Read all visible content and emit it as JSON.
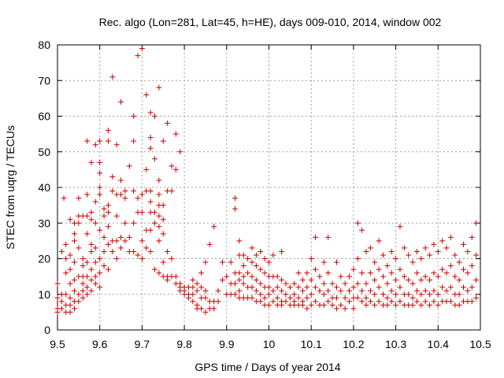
{
  "chart_data": {
    "type": "scatter",
    "title": "Rec. algo (Lon=281, Lat=45, h=HE), days 009-010, 2014, window 002",
    "xlabel": "GPS time / Days of year 2014",
    "ylabel": "STEC from uqrg / TECUs",
    "xlim": [
      9.5,
      10.5
    ],
    "ylim": [
      0,
      80
    ],
    "xticks": [
      "9.5",
      "9.6",
      "9.7",
      "9.8",
      "9.9",
      "10",
      "10.1",
      "10.2",
      "10.3",
      "10.4",
      "10.5"
    ],
    "yticks": [
      "0",
      "10",
      "20",
      "30",
      "40",
      "50",
      "60",
      "70",
      "80"
    ],
    "grid": true,
    "marker": "+",
    "marker_color": "#cc0000",
    "points": [
      [
        9.5,
        13
      ],
      [
        9.5,
        9
      ],
      [
        9.5,
        6
      ],
      [
        9.5,
        5
      ],
      [
        9.51,
        22
      ],
      [
        9.51,
        10
      ],
      [
        9.51,
        8
      ],
      [
        9.51,
        6
      ],
      [
        9.515,
        37
      ],
      [
        9.52,
        20
      ],
      [
        9.52,
        24
      ],
      [
        9.52,
        16
      ],
      [
        9.52,
        10
      ],
      [
        9.52,
        7
      ],
      [
        9.52,
        5
      ],
      [
        9.53,
        31
      ],
      [
        9.53,
        21
      ],
      [
        9.53,
        17
      ],
      [
        9.53,
        13
      ],
      [
        9.53,
        9
      ],
      [
        9.53,
        7
      ],
      [
        9.53,
        5
      ],
      [
        9.54,
        30
      ],
      [
        9.54,
        27
      ],
      [
        9.54,
        25
      ],
      [
        9.54,
        19
      ],
      [
        9.54,
        14
      ],
      [
        9.54,
        11
      ],
      [
        9.54,
        8
      ],
      [
        9.54,
        6
      ],
      [
        9.55,
        37
      ],
      [
        9.55,
        32
      ],
      [
        9.55,
        30
      ],
      [
        9.55,
        23
      ],
      [
        9.55,
        15
      ],
      [
        9.55,
        10
      ],
      [
        9.55,
        8
      ],
      [
        9.56,
        32
      ],
      [
        9.56,
        20
      ],
      [
        9.56,
        18
      ],
      [
        9.56,
        15
      ],
      [
        9.56,
        13
      ],
      [
        9.56,
        11
      ],
      [
        9.56,
        9
      ],
      [
        9.57,
        53
      ],
      [
        9.57,
        38
      ],
      [
        9.57,
        32
      ],
      [
        9.57,
        27
      ],
      [
        9.57,
        19
      ],
      [
        9.57,
        15
      ],
      [
        9.57,
        12
      ],
      [
        9.57,
        10
      ],
      [
        9.58,
        47
      ],
      [
        9.58,
        33
      ],
      [
        9.58,
        31
      ],
      [
        9.58,
        24
      ],
      [
        9.58,
        22
      ],
      [
        9.58,
        17
      ],
      [
        9.58,
        14
      ],
      [
        9.58,
        11
      ],
      [
        9.59,
        52
      ],
      [
        9.59,
        36
      ],
      [
        9.59,
        30
      ],
      [
        9.59,
        23
      ],
      [
        9.59,
        19
      ],
      [
        9.59,
        15
      ],
      [
        9.59,
        13
      ],
      [
        9.6,
        53
      ],
      [
        9.6,
        47
      ],
      [
        9.6,
        44
      ],
      [
        9.6,
        40
      ],
      [
        9.6,
        38
      ],
      [
        9.6,
        28
      ],
      [
        9.6,
        20
      ],
      [
        9.6,
        16
      ],
      [
        9.6,
        12
      ],
      [
        9.61,
        34
      ],
      [
        9.61,
        32
      ],
      [
        9.61,
        26
      ],
      [
        9.61,
        22
      ],
      [
        9.61,
        18
      ],
      [
        9.62,
        56
      ],
      [
        9.62,
        53
      ],
      [
        9.62,
        35
      ],
      [
        9.62,
        33
      ],
      [
        9.62,
        29
      ],
      [
        9.62,
        24
      ],
      [
        9.62,
        17
      ],
      [
        9.63,
        71
      ],
      [
        9.63,
        43
      ],
      [
        9.63,
        39
      ],
      [
        9.63,
        25
      ],
      [
        9.63,
        22
      ],
      [
        9.64,
        52
      ],
      [
        9.64,
        38
      ],
      [
        9.64,
        32
      ],
      [
        9.64,
        25
      ],
      [
        9.64,
        20
      ],
      [
        9.65,
        64
      ],
      [
        9.65,
        42
      ],
      [
        9.65,
        38
      ],
      [
        9.65,
        26
      ],
      [
        9.65,
        23
      ],
      [
        9.66,
        39
      ],
      [
        9.66,
        37
      ],
      [
        9.66,
        30
      ],
      [
        9.66,
        25
      ],
      [
        9.67,
        46
      ],
      [
        9.67,
        26
      ],
      [
        9.67,
        22
      ],
      [
        9.68,
        60
      ],
      [
        9.68,
        53
      ],
      [
        9.68,
        39
      ],
      [
        9.68,
        30
      ],
      [
        9.68,
        22
      ],
      [
        9.69,
        77
      ],
      [
        9.69,
        37
      ],
      [
        9.69,
        33
      ],
      [
        9.69,
        21
      ],
      [
        9.7,
        79
      ],
      [
        9.7,
        38
      ],
      [
        9.7,
        33
      ],
      [
        9.7,
        25
      ],
      [
        9.7,
        20
      ],
      [
        9.71,
        66
      ],
      [
        9.71,
        45
      ],
      [
        9.71,
        39
      ],
      [
        9.71,
        28
      ],
      [
        9.71,
        23
      ],
      [
        9.72,
        61
      ],
      [
        9.72,
        54
      ],
      [
        9.72,
        51
      ],
      [
        9.72,
        39
      ],
      [
        9.72,
        36
      ],
      [
        9.72,
        33
      ],
      [
        9.72,
        28
      ],
      [
        9.72,
        22
      ],
      [
        9.73,
        60
      ],
      [
        9.73,
        48
      ],
      [
        9.73,
        33
      ],
      [
        9.73,
        30
      ],
      [
        9.73,
        17
      ],
      [
        9.74,
        68
      ],
      [
        9.74,
        42
      ],
      [
        9.74,
        38
      ],
      [
        9.74,
        35
      ],
      [
        9.74,
        32
      ],
      [
        9.74,
        29
      ],
      [
        9.74,
        25
      ],
      [
        9.74,
        16
      ],
      [
        9.75,
        53
      ],
      [
        9.75,
        35
      ],
      [
        9.75,
        31
      ],
      [
        9.75,
        27
      ],
      [
        9.75,
        19
      ],
      [
        9.75,
        15
      ],
      [
        9.76,
        58
      ],
      [
        9.76,
        39
      ],
      [
        9.76,
        22
      ],
      [
        9.76,
        15
      ],
      [
        9.76,
        14
      ],
      [
        9.77,
        46
      ],
      [
        9.77,
        39
      ],
      [
        9.77,
        20
      ],
      [
        9.77,
        15
      ],
      [
        9.78,
        55
      ],
      [
        9.78,
        45
      ],
      [
        9.78,
        15
      ],
      [
        9.78,
        13
      ],
      [
        9.79,
        50
      ],
      [
        9.79,
        13
      ],
      [
        9.79,
        12
      ],
      [
        9.79,
        11
      ],
      [
        9.8,
        12
      ],
      [
        9.8,
        11
      ],
      [
        9.8,
        10
      ],
      [
        9.81,
        12
      ],
      [
        9.81,
        10
      ],
      [
        9.81,
        9
      ],
      [
        9.82,
        14
      ],
      [
        9.82,
        12
      ],
      [
        9.82,
        10
      ],
      [
        9.82,
        8
      ],
      [
        9.83,
        13
      ],
      [
        9.83,
        11
      ],
      [
        9.83,
        7
      ],
      [
        9.83,
        6
      ],
      [
        9.84,
        16
      ],
      [
        9.84,
        12
      ],
      [
        9.84,
        9
      ],
      [
        9.84,
        6
      ],
      [
        9.85,
        19
      ],
      [
        9.85,
        11
      ],
      [
        9.85,
        9
      ],
      [
        9.85,
        5
      ],
      [
        9.86,
        24
      ],
      [
        9.86,
        8
      ],
      [
        9.86,
        6
      ],
      [
        9.87,
        29
      ],
      [
        9.87,
        8
      ],
      [
        9.87,
        6
      ],
      [
        9.88,
        11
      ],
      [
        9.88,
        8
      ],
      [
        9.89,
        19
      ],
      [
        9.89,
        14
      ],
      [
        9.9,
        15
      ],
      [
        9.9,
        10
      ],
      [
        9.91,
        19
      ],
      [
        9.91,
        13
      ],
      [
        9.91,
        10
      ],
      [
        9.92,
        37
      ],
      [
        9.92,
        34
      ],
      [
        9.92,
        16
      ],
      [
        9.92,
        13
      ],
      [
        9.92,
        10
      ],
      [
        9.93,
        25
      ],
      [
        9.93,
        21
      ],
      [
        9.93,
        16
      ],
      [
        9.93,
        14
      ],
      [
        9.93,
        11
      ],
      [
        9.93,
        9
      ],
      [
        9.94,
        21
      ],
      [
        9.94,
        18
      ],
      [
        9.94,
        15
      ],
      [
        9.94,
        13
      ],
      [
        9.94,
        9
      ],
      [
        9.95,
        20
      ],
      [
        9.95,
        16
      ],
      [
        9.95,
        12
      ],
      [
        9.95,
        9
      ],
      [
        9.96,
        23
      ],
      [
        9.96,
        19
      ],
      [
        9.96,
        15
      ],
      [
        9.96,
        12
      ],
      [
        9.96,
        9
      ],
      [
        9.97,
        21
      ],
      [
        9.97,
        18
      ],
      [
        9.97,
        14
      ],
      [
        9.97,
        11
      ],
      [
        9.97,
        8
      ],
      [
        9.98,
        22
      ],
      [
        9.98,
        17
      ],
      [
        9.98,
        13
      ],
      [
        9.98,
        10
      ],
      [
        9.98,
        8
      ],
      [
        9.99,
        20
      ],
      [
        9.99,
        16
      ],
      [
        9.99,
        12
      ],
      [
        9.99,
        9
      ],
      [
        9.99,
        7
      ],
      [
        10.0,
        19
      ],
      [
        10.0,
        15
      ],
      [
        10.0,
        12
      ],
      [
        10.0,
        10
      ],
      [
        10.0,
        7
      ],
      [
        10.01,
        21
      ],
      [
        10.01,
        15
      ],
      [
        10.01,
        11
      ],
      [
        10.01,
        8
      ],
      [
        10.02,
        15
      ],
      [
        10.02,
        12
      ],
      [
        10.02,
        9
      ],
      [
        10.02,
        7
      ],
      [
        10.03,
        22
      ],
      [
        10.03,
        14
      ],
      [
        10.03,
        11
      ],
      [
        10.03,
        8
      ],
      [
        10.03,
        7
      ],
      [
        10.04,
        13
      ],
      [
        10.04,
        10
      ],
      [
        10.04,
        8
      ],
      [
        10.05,
        12
      ],
      [
        10.05,
        9
      ],
      [
        10.05,
        7
      ],
      [
        10.06,
        13
      ],
      [
        10.06,
        10
      ],
      [
        10.06,
        8
      ],
      [
        10.06,
        7
      ],
      [
        10.07,
        16
      ],
      [
        10.07,
        12
      ],
      [
        10.07,
        9
      ],
      [
        10.07,
        7
      ],
      [
        10.08,
        14
      ],
      [
        10.08,
        11
      ],
      [
        10.08,
        8
      ],
      [
        10.08,
        7
      ],
      [
        10.09,
        16
      ],
      [
        10.09,
        12
      ],
      [
        10.09,
        9
      ],
      [
        10.09,
        6
      ],
      [
        10.1,
        20
      ],
      [
        10.1,
        14
      ],
      [
        10.1,
        10
      ],
      [
        10.1,
        7
      ],
      [
        10.11,
        26
      ],
      [
        10.11,
        17
      ],
      [
        10.11,
        12
      ],
      [
        10.11,
        8
      ],
      [
        10.12,
        15
      ],
      [
        10.12,
        11
      ],
      [
        10.12,
        7
      ],
      [
        10.13,
        19
      ],
      [
        10.13,
        13
      ],
      [
        10.13,
        10
      ],
      [
        10.13,
        7
      ],
      [
        10.14,
        26
      ],
      [
        10.14,
        16
      ],
      [
        10.14,
        11
      ],
      [
        10.14,
        8
      ],
      [
        10.15,
        13
      ],
      [
        10.15,
        9
      ],
      [
        10.15,
        7
      ],
      [
        10.16,
        19
      ],
      [
        10.16,
        12
      ],
      [
        10.16,
        9
      ],
      [
        10.16,
        6
      ],
      [
        10.17,
        15
      ],
      [
        10.17,
        11
      ],
      [
        10.17,
        7
      ],
      [
        10.18,
        13
      ],
      [
        10.18,
        9
      ],
      [
        10.18,
        6
      ],
      [
        10.19,
        15
      ],
      [
        10.19,
        11
      ],
      [
        10.19,
        8
      ],
      [
        10.2,
        17
      ],
      [
        10.2,
        12
      ],
      [
        10.2,
        9
      ],
      [
        10.2,
        6
      ],
      [
        10.21,
        30
      ],
      [
        10.21,
        20
      ],
      [
        10.21,
        13
      ],
      [
        10.21,
        9
      ],
      [
        10.22,
        28
      ],
      [
        10.22,
        16
      ],
      [
        10.22,
        11
      ],
      [
        10.22,
        8
      ],
      [
        10.23,
        22
      ],
      [
        10.23,
        13
      ],
      [
        10.23,
        9
      ],
      [
        10.23,
        7
      ],
      [
        10.24,
        23
      ],
      [
        10.24,
        16
      ],
      [
        10.24,
        11
      ],
      [
        10.24,
        8
      ],
      [
        10.25,
        19
      ],
      [
        10.25,
        14
      ],
      [
        10.25,
        10
      ],
      [
        10.25,
        7
      ],
      [
        10.26,
        25
      ],
      [
        10.26,
        17
      ],
      [
        10.26,
        12
      ],
      [
        10.26,
        8
      ],
      [
        10.27,
        21
      ],
      [
        10.27,
        15
      ],
      [
        10.27,
        10
      ],
      [
        10.27,
        7
      ],
      [
        10.28,
        18
      ],
      [
        10.28,
        13
      ],
      [
        10.28,
        9
      ],
      [
        10.28,
        7
      ],
      [
        10.29,
        22
      ],
      [
        10.29,
        16
      ],
      [
        10.29,
        11
      ],
      [
        10.29,
        8
      ],
      [
        10.3,
        20
      ],
      [
        10.3,
        14
      ],
      [
        10.3,
        10
      ],
      [
        10.3,
        7
      ],
      [
        10.31,
        29
      ],
      [
        10.31,
        17
      ],
      [
        10.31,
        12
      ],
      [
        10.31,
        8
      ],
      [
        10.32,
        23
      ],
      [
        10.32,
        15
      ],
      [
        10.32,
        10
      ],
      [
        10.32,
        7
      ],
      [
        10.33,
        21
      ],
      [
        10.33,
        14
      ],
      [
        10.33,
        10
      ],
      [
        10.33,
        7
      ],
      [
        10.34,
        19
      ],
      [
        10.34,
        13
      ],
      [
        10.34,
        9
      ],
      [
        10.34,
        7
      ],
      [
        10.35,
        22
      ],
      [
        10.35,
        16
      ],
      [
        10.35,
        11
      ],
      [
        10.35,
        8
      ],
      [
        10.36,
        20
      ],
      [
        10.36,
        14
      ],
      [
        10.36,
        10
      ],
      [
        10.36,
        7
      ],
      [
        10.37,
        23
      ],
      [
        10.37,
        15
      ],
      [
        10.37,
        11
      ],
      [
        10.37,
        8
      ],
      [
        10.38,
        21
      ],
      [
        10.38,
        14
      ],
      [
        10.38,
        10
      ],
      [
        10.38,
        7
      ],
      [
        10.39,
        24
      ],
      [
        10.39,
        16
      ],
      [
        10.39,
        11
      ],
      [
        10.39,
        8
      ],
      [
        10.4,
        22
      ],
      [
        10.4,
        15
      ],
      [
        10.4,
        10
      ],
      [
        10.4,
        7
      ],
      [
        10.41,
        25
      ],
      [
        10.41,
        17
      ],
      [
        10.41,
        12
      ],
      [
        10.41,
        8
      ],
      [
        10.42,
        23
      ],
      [
        10.42,
        16
      ],
      [
        10.42,
        11
      ],
      [
        10.42,
        8
      ],
      [
        10.43,
        26
      ],
      [
        10.43,
        18
      ],
      [
        10.43,
        12
      ],
      [
        10.43,
        8
      ],
      [
        10.44,
        21
      ],
      [
        10.44,
        15
      ],
      [
        10.44,
        10
      ],
      [
        10.44,
        7
      ],
      [
        10.45,
        19
      ],
      [
        10.45,
        14
      ],
      [
        10.45,
        10
      ],
      [
        10.45,
        7
      ],
      [
        10.46,
        24
      ],
      [
        10.46,
        17
      ],
      [
        10.46,
        12
      ],
      [
        10.46,
        8
      ],
      [
        10.47,
        22
      ],
      [
        10.47,
        16
      ],
      [
        10.47,
        11
      ],
      [
        10.47,
        8
      ],
      [
        10.48,
        26
      ],
      [
        10.48,
        18
      ],
      [
        10.48,
        12
      ],
      [
        10.48,
        8
      ],
      [
        10.49,
        30
      ],
      [
        10.49,
        21
      ],
      [
        10.49,
        14
      ],
      [
        10.49,
        9
      ]
    ]
  }
}
